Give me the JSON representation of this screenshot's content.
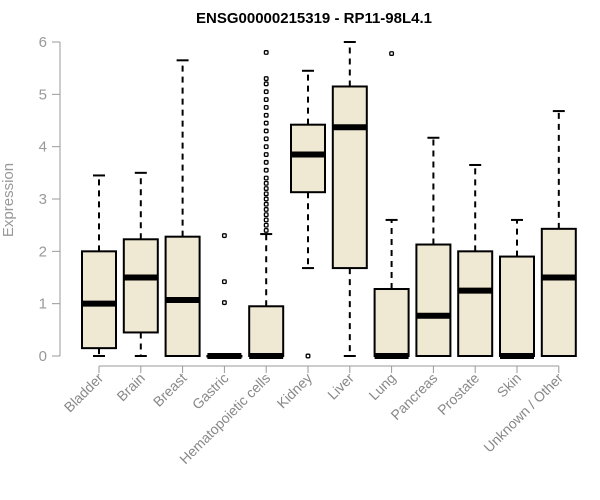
{
  "chart_data": {
    "type": "boxplot",
    "title": "ENSG00000215319 - RP11-98L4.1",
    "xlabel": "",
    "ylabel": "Expression",
    "ylim": [
      0,
      6
    ],
    "yticks": [
      0,
      1,
      2,
      3,
      4,
      5,
      6
    ],
    "box_color": "#EFE8D2",
    "categories": [
      "Bladder",
      "Brain",
      "Breast",
      "Gastric",
      "Hematopoietic cells",
      "Kidney",
      "Liver",
      "Lung",
      "Pancreas",
      "Prostate",
      "Skin",
      "Unknown / Other"
    ],
    "series": [
      {
        "name": "Bladder",
        "whisker_low": 0,
        "q1": 0.15,
        "median": 1.0,
        "q3": 2.0,
        "whisker_high": 3.45,
        "outliers": []
      },
      {
        "name": "Brain",
        "whisker_low": 0,
        "q1": 0.45,
        "median": 1.5,
        "q3": 2.23,
        "whisker_high": 3.5,
        "outliers": []
      },
      {
        "name": "Breast",
        "whisker_low": 0,
        "q1": 0,
        "median": 1.07,
        "q3": 2.28,
        "whisker_high": 5.65,
        "outliers": []
      },
      {
        "name": "Gastric",
        "whisker_low": 0,
        "q1": 0,
        "median": 0,
        "q3": 0,
        "whisker_high": 0,
        "outliers": [
          1.02,
          1.42,
          2.3
        ]
      },
      {
        "name": "Hematopoietic cells",
        "whisker_low": 0,
        "q1": 0,
        "median": 0,
        "q3": 0.95,
        "whisker_high": 2.33,
        "outliers": [
          2.4,
          2.5,
          2.6,
          2.7,
          2.8,
          2.9,
          3.0,
          3.1,
          3.2,
          3.3,
          3.4,
          3.55,
          3.7,
          3.85,
          4.0,
          4.15,
          4.3,
          4.45,
          4.6,
          4.75,
          4.9,
          5.05,
          5.2,
          5.3,
          5.8
        ]
      },
      {
        "name": "Kidney",
        "whisker_low": 1.68,
        "q1": 3.13,
        "median": 3.85,
        "q3": 4.42,
        "whisker_high": 5.45,
        "outliers": [
          0
        ]
      },
      {
        "name": "Liver",
        "whisker_low": 0,
        "q1": 1.68,
        "median": 4.37,
        "q3": 5.15,
        "whisker_high": 6.0,
        "outliers": []
      },
      {
        "name": "Lung",
        "whisker_low": 0,
        "q1": 0,
        "median": 0,
        "q3": 1.28,
        "whisker_high": 2.6,
        "outliers": [
          5.78
        ]
      },
      {
        "name": "Pancreas",
        "whisker_low": 0,
        "q1": 0,
        "median": 0.77,
        "q3": 2.13,
        "whisker_high": 4.17,
        "outliers": []
      },
      {
        "name": "Prostate",
        "whisker_low": 0,
        "q1": 0,
        "median": 1.25,
        "q3": 2.0,
        "whisker_high": 3.65,
        "outliers": []
      },
      {
        "name": "Skin",
        "whisker_low": 0,
        "q1": 0,
        "median": 0,
        "q3": 1.9,
        "whisker_high": 2.6,
        "outliers": []
      },
      {
        "name": "Unknown / Other",
        "whisker_low": 0,
        "q1": 0,
        "median": 1.5,
        "q3": 2.43,
        "whisker_high": 4.68,
        "outliers": []
      }
    ]
  }
}
